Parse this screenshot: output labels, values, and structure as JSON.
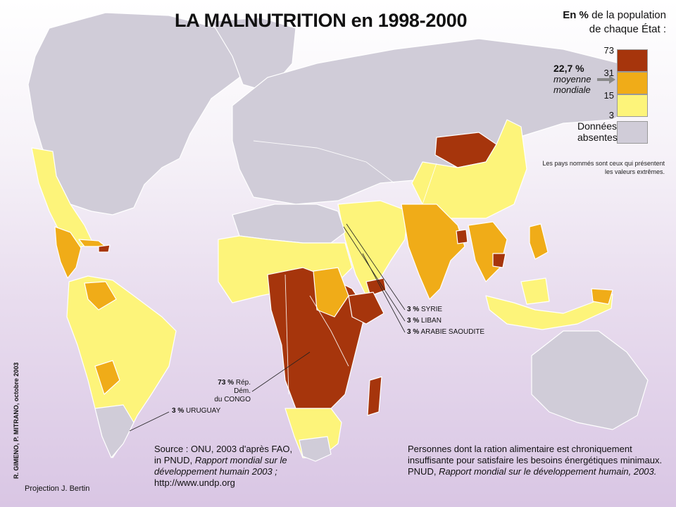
{
  "title": "LA MALNUTRITION en 1998-2000",
  "legend": {
    "heading_bold": "En %",
    "heading_rest": "de la population de chaque État :",
    "ticks": [
      "73",
      "31",
      "15",
      "3"
    ],
    "classes": [
      {
        "range": "31–73",
        "color": "#a6350c"
      },
      {
        "range": "15–31",
        "color": "#f0ac18"
      },
      {
        "range": "3–15",
        "color": "#fdf47a"
      },
      {
        "range": "Données absentes",
        "color": "#d0ccd8"
      }
    ],
    "absent_label": "Données absentes",
    "mean_value": "22,7 %",
    "mean_label_1": "moyenne",
    "mean_label_2": "mondiale",
    "note": "Les pays nommés sont ceux qui présentent les valeurs extrêmes."
  },
  "callouts": {
    "syrie": {
      "pct": "3 %",
      "name": "SYRIE"
    },
    "liban": {
      "pct": "3 %",
      "name": "LIBAN"
    },
    "arabie": {
      "pct": "3 %",
      "name": "ARABIE SAOUDITE"
    },
    "congo": {
      "pct": "73 %",
      "name_1": "Rép. Dém.",
      "name_2": "du CONGO"
    },
    "uruguay": {
      "pct": "3 %",
      "name": "URUGUAY"
    }
  },
  "source": {
    "line1": "Source : ONU, 2003 d'après FAO,",
    "line2": "in PNUD,",
    "line2_italic": "Rapport mondial sur le développement humain 2003 ;",
    "line3": "http://www.undp.org"
  },
  "definition": {
    "text": "Personnes dont la ration alimentaire est chroniquement insuffisante pour satisfaire les besoins énergétiques minimaux.",
    "ref_prefix": "PNUD,",
    "ref_italic": "Rapport mondial sur le développement humain, 2003."
  },
  "credit": "R. GIMENO, P. MITRANO, octobre 2003",
  "projection": "Projection J. Bertin",
  "colors": {
    "high": "#a6350c",
    "mid": "#f0ac18",
    "low": "#fdf47a",
    "none": "#d0ccd8"
  }
}
